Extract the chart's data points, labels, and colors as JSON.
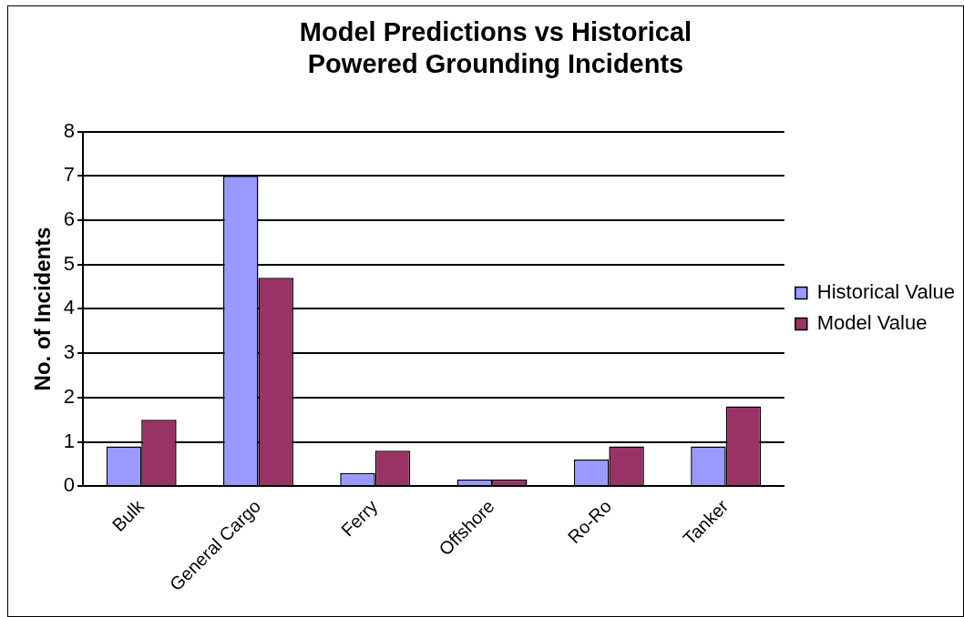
{
  "chart_data": {
    "type": "bar",
    "title": [
      "Model Predictions vs Historical",
      "Powered Grounding Incidents"
    ],
    "ylabel": "No. of Incidents",
    "categories": [
      "Bulk",
      "General Cargo",
      "Ferry",
      "Offshore",
      "Ro-Ro",
      "Tanker"
    ],
    "series": [
      {
        "name": "Historical Value",
        "color": "#9999ff",
        "values": [
          0.9,
          7,
          0.3,
          0.15,
          0.6,
          0.9
        ]
      },
      {
        "name": "Model Value",
        "color": "#993366",
        "values": [
          1.5,
          4.7,
          0.8,
          0.15,
          0.9,
          1.8
        ]
      }
    ],
    "ylim": [
      0,
      8
    ],
    "yticks": [
      0,
      1,
      2,
      3,
      4,
      5,
      6,
      7,
      8
    ],
    "grid": "y",
    "legend": "right"
  }
}
